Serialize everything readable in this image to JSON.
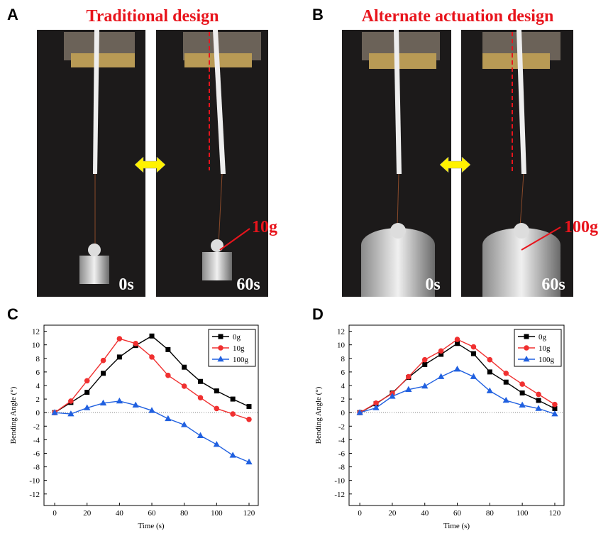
{
  "panels": [
    {
      "label": "A",
      "title": "Traditional design",
      "photo_labels": [
        "0s",
        "60s"
      ],
      "load_label": "10g"
    },
    {
      "label": "B",
      "title": "Alternate actuation design",
      "photo_labels": [
        "0s",
        "60s"
      ],
      "load_label": "100g"
    },
    {
      "label": "C"
    },
    {
      "label": "D"
    }
  ],
  "chart_data": [
    {
      "type": "line",
      "x_label": "Time (s)",
      "y_label": "Bending Angle (°)",
      "x": [
        0,
        10,
        20,
        30,
        40,
        50,
        60,
        70,
        80,
        90,
        100,
        110,
        120
      ],
      "series": [
        {
          "name": "0g",
          "color": "#000000",
          "marker": "square",
          "values": [
            0,
            1.5,
            3,
            5.8,
            8.2,
            9.9,
            11.3,
            9.3,
            6.7,
            4.6,
            3.2,
            2.0,
            0.9
          ]
        },
        {
          "name": "10g",
          "color": "#f03030",
          "marker": "circle",
          "values": [
            0,
            1.7,
            4.7,
            7.7,
            10.9,
            10.2,
            8.2,
            5.5,
            3.9,
            2.2,
            0.6,
            -0.2,
            -1.0
          ]
        },
        {
          "name": "100g",
          "color": "#2060e0",
          "marker": "triangle",
          "values": [
            0,
            -0.2,
            0.7,
            1.4,
            1.7,
            1.1,
            0.3,
            -0.9,
            -1.8,
            -3.4,
            -4.7,
            -6.3,
            -7.3
          ]
        }
      ],
      "xlim": [
        -6.6,
        125.7
      ],
      "ylim": [
        -13.7,
        12.9
      ],
      "xticks": [
        0,
        20,
        40,
        60,
        80,
        100,
        120
      ],
      "yticks": [
        -12,
        -10,
        -8,
        -6,
        -4,
        -2,
        0,
        2,
        4,
        6,
        8,
        10,
        12
      ],
      "zero_line": true,
      "legend": "top-right"
    },
    {
      "type": "line",
      "x_label": "Time (s)",
      "y_label": "Bending Angle (°)",
      "x": [
        0,
        10,
        20,
        30,
        40,
        50,
        60,
        70,
        80,
        90,
        100,
        110,
        120
      ],
      "series": [
        {
          "name": "0g",
          "color": "#000000",
          "marker": "square",
          "values": [
            0,
            1.3,
            2.9,
            5.2,
            7.1,
            8.6,
            10.2,
            8.7,
            6.0,
            4.5,
            2.9,
            1.8,
            0.6
          ]
        },
        {
          "name": "10g",
          "color": "#f03030",
          "marker": "circle",
          "values": [
            0,
            1.4,
            2.8,
            5.3,
            7.8,
            9.1,
            10.8,
            9.7,
            7.8,
            5.8,
            4.2,
            2.7,
            1.2
          ]
        },
        {
          "name": "100g",
          "color": "#2060e0",
          "marker": "triangle",
          "values": [
            0,
            0.7,
            2.4,
            3.4,
            3.9,
            5.3,
            6.4,
            5.3,
            3.2,
            1.8,
            1.1,
            0.6,
            -0.2
          ]
        }
      ],
      "xlim": [
        -6.6,
        125.7
      ],
      "ylim": [
        -13.7,
        12.9
      ],
      "xticks": [
        0,
        20,
        40,
        60,
        80,
        100,
        120
      ],
      "yticks": [
        -12,
        -10,
        -8,
        -6,
        -4,
        -2,
        0,
        2,
        4,
        6,
        8,
        10,
        12
      ],
      "zero_line": true,
      "legend": "top-right"
    }
  ]
}
